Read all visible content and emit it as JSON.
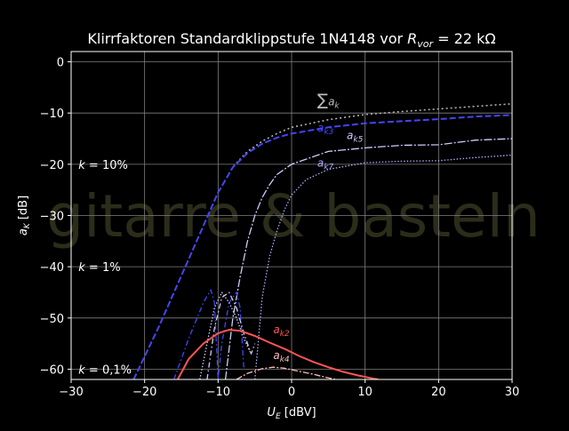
{
  "chart_data": {
    "type": "line",
    "title": "Klirrfaktoren Standardklippstufe 1N4148 vor",
    "title_math": {
      "base": "R",
      "sub": "vor",
      "rest": " =  22 kΩ"
    },
    "xlabel": {
      "base": "U",
      "sub": "E",
      "rest": " [dBV]"
    },
    "ylabel": {
      "base": "a",
      "sub": "K",
      "rest": " [dB]"
    },
    "xlim": [
      -30,
      30
    ],
    "ylim": [
      -62,
      2
    ],
    "xticks": [
      -30,
      -20,
      -10,
      0,
      10,
      20,
      30
    ],
    "xtick_labels": [
      "−30",
      "−20",
      "−10",
      "0",
      "10",
      "20",
      "30"
    ],
    "yticks": [
      0,
      -10,
      -20,
      -30,
      -40,
      -50,
      -60
    ],
    "ytick_labels": [
      "0",
      "−10",
      "−20",
      "−30",
      "−40",
      "−50",
      "−60"
    ],
    "grid": true,
    "watermark": "gitarre & basteln",
    "colors": {
      "background": "#000000",
      "axes": "#ffffff",
      "grid": "#808080"
    },
    "annotations": [
      {
        "text": "k = 10%",
        "x": -29,
        "y": -20
      },
      {
        "text": "k = 1%",
        "x": -29,
        "y": -40
      },
      {
        "text": "k = 0,1%",
        "x": -29,
        "y": -60
      }
    ],
    "series": [
      {
        "name": "∑a_k",
        "label_main": "∑",
        "label_base": "a",
        "label_sub": "k",
        "label_at": [
          3.5,
          -8.5
        ],
        "color": "#bbbbbb",
        "dash": "2,3",
        "width": 1.5,
        "x": [
          -21.5,
          -20,
          -18,
          -16,
          -14,
          -12,
          -10,
          -8,
          -6,
          -4,
          -2,
          0,
          5,
          10,
          15,
          20,
          25,
          30
        ],
        "y": [
          -62,
          -57.5,
          -51.5,
          -45,
          -38.5,
          -32,
          -25.5,
          -20.5,
          -17.5,
          -15.5,
          -14,
          -12.8,
          -11.3,
          -10.3,
          -9.7,
          -9.2,
          -8.7,
          -8.2
        ]
      },
      {
        "name": "a_k3",
        "label_base": "a",
        "label_sub": "k3",
        "label_at": [
          3.5,
          -13.6
        ],
        "color": "#4444ff",
        "dash": "7,3",
        "width": 2,
        "x": [
          -21.5,
          -20,
          -18,
          -16,
          -14,
          -12,
          -10,
          -8,
          -6,
          -4,
          -2,
          0,
          5,
          10,
          15,
          20,
          25,
          30
        ],
        "y": [
          -62,
          -57.5,
          -51.5,
          -45,
          -38.5,
          -32,
          -25.5,
          -20.6,
          -17.8,
          -16,
          -14.8,
          -14,
          -12.8,
          -12,
          -11.6,
          -11.2,
          -10.7,
          -10.4
        ]
      },
      {
        "name": "a_k5",
        "label_base": "a",
        "label_sub": "k5",
        "label_at": [
          7.5,
          -15.1
        ],
        "color": "#ccccff",
        "dash": "9,2,2,2",
        "width": 1.3,
        "x": [
          -9,
          -8,
          -7,
          -6,
          -5,
          -4,
          -3,
          -2,
          0,
          5,
          10,
          15,
          20,
          25,
          30
        ],
        "y": [
          -62,
          -50,
          -42,
          -35,
          -30,
          -26.5,
          -24,
          -22,
          -20,
          -17.5,
          -16.8,
          -16.3,
          -16.2,
          -15.3,
          -15
        ]
      },
      {
        "name": "a_k7",
        "label_base": "a",
        "label_sub": "k7",
        "label_at": [
          3.5,
          -20.5
        ],
        "color": "#aaaaff",
        "dash": "1.5,2",
        "width": 1.3,
        "x": [
          -5,
          -4,
          -3,
          -2,
          -1,
          0,
          2,
          5,
          10,
          15,
          20,
          25,
          30
        ],
        "y": [
          -62,
          -46,
          -38,
          -33,
          -29,
          -26,
          -23,
          -21,
          -19.7,
          -19.4,
          -19.3,
          -18.7,
          -18.2
        ]
      },
      {
        "name": "a_k3 low",
        "color": "#4444ff",
        "dash": "6,3,1.5,3",
        "width": 1.3,
        "x": [
          -16,
          -14,
          -12,
          -11,
          -10.5,
          -10,
          -9.5,
          -8.5,
          -7.5,
          -7,
          -6.5
        ],
        "y": [
          -62,
          -54,
          -47,
          -44.5,
          -47,
          -62,
          -55,
          -47,
          -45,
          -48,
          -60
        ]
      },
      {
        "name": "a_k5 low",
        "color": "#ccccff",
        "dash": "6,3,1.5,3",
        "width": 1.3,
        "x": [
          -11.5,
          -10.5,
          -9.5,
          -8.5,
          -7.5,
          -6.5,
          -5.5,
          -5
        ],
        "y": [
          -62,
          -52,
          -46,
          -45,
          -48,
          -53,
          -57,
          -55
        ]
      },
      {
        "name": "a_k7 low",
        "color": "#ccccff",
        "dash": "1.5,2",
        "width": 1.3,
        "x": [
          -12.5,
          -11.5,
          -10.5,
          -9.5,
          -8.5,
          -7.5,
          -6.5,
          -5.5
        ],
        "y": [
          -62,
          -55,
          -48,
          -45,
          -47,
          -50,
          -54,
          -57
        ]
      },
      {
        "name": "a_k2",
        "label_base": "a",
        "label_sub": "k2",
        "label_at": [
          -2.5,
          -53
        ],
        "color": "#ff5555",
        "dash": "",
        "width": 2,
        "x": [
          -15.5,
          -14,
          -12,
          -10,
          -8.5,
          -7,
          -5,
          -3,
          -1,
          1,
          3,
          5,
          7,
          9,
          11,
          11.8
        ],
        "y": [
          -62,
          -58,
          -55,
          -53,
          -52.3,
          -52.5,
          -53.5,
          -54.8,
          -56,
          -57.4,
          -58.6,
          -59.6,
          -60.5,
          -61.2,
          -61.8,
          -62
        ]
      },
      {
        "name": "a_k4",
        "label_base": "a",
        "label_sub": "k4",
        "label_at": [
          -2.5,
          -58
        ],
        "color": "#ffbbbb",
        "dash": "7,2,2,2",
        "width": 1.3,
        "x": [
          -7.5,
          -6,
          -4,
          -2.5,
          -1,
          1,
          3,
          5,
          6
        ],
        "y": [
          -62,
          -60.8,
          -59.9,
          -59.6,
          -59.8,
          -60.4,
          -61,
          -61.7,
          -62
        ]
      }
    ]
  }
}
